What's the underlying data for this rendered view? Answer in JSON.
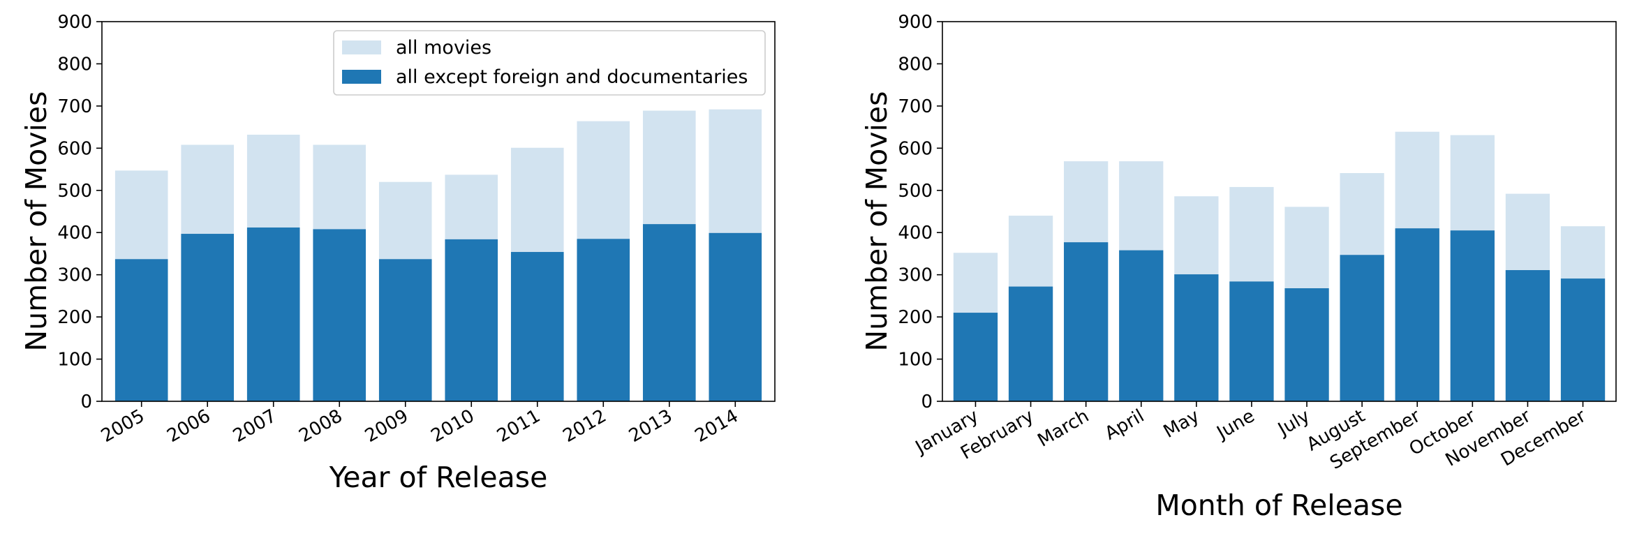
{
  "chart_data": [
    {
      "type": "bar",
      "stacking": "overlay",
      "categories": [
        "2005",
        "2006",
        "2007",
        "2008",
        "2009",
        "2010",
        "2011",
        "2012",
        "2013",
        "2014"
      ],
      "series": [
        {
          "name": "all movies",
          "color": "#d2e3f0",
          "values": [
            547,
            608,
            632,
            608,
            520,
            537,
            601,
            664,
            689,
            692
          ]
        },
        {
          "name": "all except foreign and documentaries",
          "color": "#1f77b4",
          "values": [
            337,
            397,
            412,
            408,
            337,
            384,
            354,
            385,
            420,
            399
          ]
        }
      ],
      "title": "",
      "xlabel": "Year of Release",
      "ylabel": "Number of Movies",
      "ylim": [
        0,
        900
      ],
      "yticks": [
        0,
        100,
        200,
        300,
        400,
        500,
        600,
        700,
        800,
        900
      ],
      "legend": "top-right",
      "grid": false
    },
    {
      "type": "bar",
      "stacking": "overlay",
      "categories": [
        "January",
        "February",
        "March",
        "April",
        "May",
        "June",
        "July",
        "August",
        "September",
        "October",
        "November",
        "December"
      ],
      "series": [
        {
          "name": "all movies",
          "color": "#d2e3f0",
          "values": [
            352,
            440,
            569,
            569,
            486,
            508,
            461,
            541,
            639,
            631,
            492,
            415
          ]
        },
        {
          "name": "all except foreign and documentaries",
          "color": "#1f77b4",
          "values": [
            210,
            272,
            377,
            358,
            301,
            284,
            268,
            347,
            410,
            405,
            311,
            291
          ]
        }
      ],
      "title": "",
      "xlabel": "Month of Release",
      "ylabel": "Number of Movies",
      "ylim": [
        0,
        900
      ],
      "yticks": [
        0,
        100,
        200,
        300,
        400,
        500,
        600,
        700,
        800,
        900
      ],
      "legend": "none",
      "grid": false
    }
  ]
}
